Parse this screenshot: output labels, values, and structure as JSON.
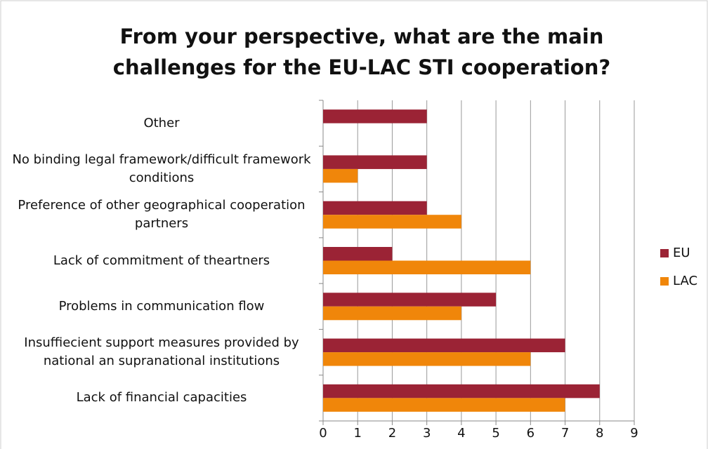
{
  "chart_data": {
    "type": "barh",
    "title": "From your perspective, what are the main challenges for the EU-LAC STI cooperation?",
    "categories": [
      "Other",
      "No binding legal framework/difficult framework conditions",
      "Preference of other geographical cooperation partners",
      "Lack of commitment of theartners",
      "Problems in communication flow",
      "Insuffiecient support measures provided by national an supranational institutions",
      "Lack of financial capacities"
    ],
    "series": [
      {
        "name": "EU",
        "color": "#9b2335",
        "values": [
          3,
          3,
          3,
          2,
          5,
          7,
          8
        ]
      },
      {
        "name": "LAC",
        "color": "#f0860a",
        "values": [
          0,
          1,
          4,
          6,
          4,
          6,
          7
        ]
      }
    ],
    "xlim": [
      0,
      9
    ],
    "xticks": [
      0,
      1,
      2,
      3,
      4,
      5,
      6,
      7,
      8,
      9
    ],
    "grid": true,
    "legend": "right"
  }
}
